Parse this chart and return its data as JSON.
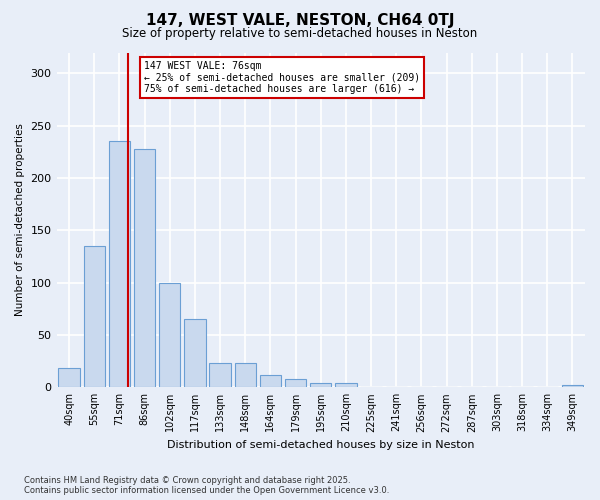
{
  "title": "147, WEST VALE, NESTON, CH64 0TJ",
  "subtitle": "Size of property relative to semi-detached houses in Neston",
  "xlabel": "Distribution of semi-detached houses by size in Neston",
  "ylabel": "Number of semi-detached properties",
  "bar_labels": [
    "40sqm",
    "55sqm",
    "71sqm",
    "86sqm",
    "102sqm",
    "117sqm",
    "133sqm",
    "148sqm",
    "164sqm",
    "179sqm",
    "195sqm",
    "210sqm",
    "225sqm",
    "241sqm",
    "256sqm",
    "272sqm",
    "287sqm",
    "303sqm",
    "318sqm",
    "334sqm",
    "349sqm"
  ],
  "bar_values": [
    18,
    135,
    235,
    228,
    100,
    65,
    23,
    23,
    12,
    8,
    4,
    4,
    0,
    0,
    0,
    0,
    0,
    0,
    0,
    0,
    2
  ],
  "bar_color": "#c9d9ee",
  "bar_edge_color": "#6b9fd4",
  "background_color": "#e8eef8",
  "grid_color": "#ffffff",
  "annotation_line_label": "147 WEST VALE: 76sqm",
  "annotation_smaller": "← 25% of semi-detached houses are smaller (209)",
  "annotation_larger": "75% of semi-detached houses are larger (616) →",
  "annotation_box_color": "#ffffff",
  "annotation_box_edge": "#cc0000",
  "vline_color": "#cc0000",
  "vline_x_index": 2,
  "ylim": [
    0,
    320
  ],
  "yticks": [
    0,
    50,
    100,
    150,
    200,
    250,
    300
  ],
  "footnote1": "Contains HM Land Registry data © Crown copyright and database right 2025.",
  "footnote2": "Contains public sector information licensed under the Open Government Licence v3.0."
}
